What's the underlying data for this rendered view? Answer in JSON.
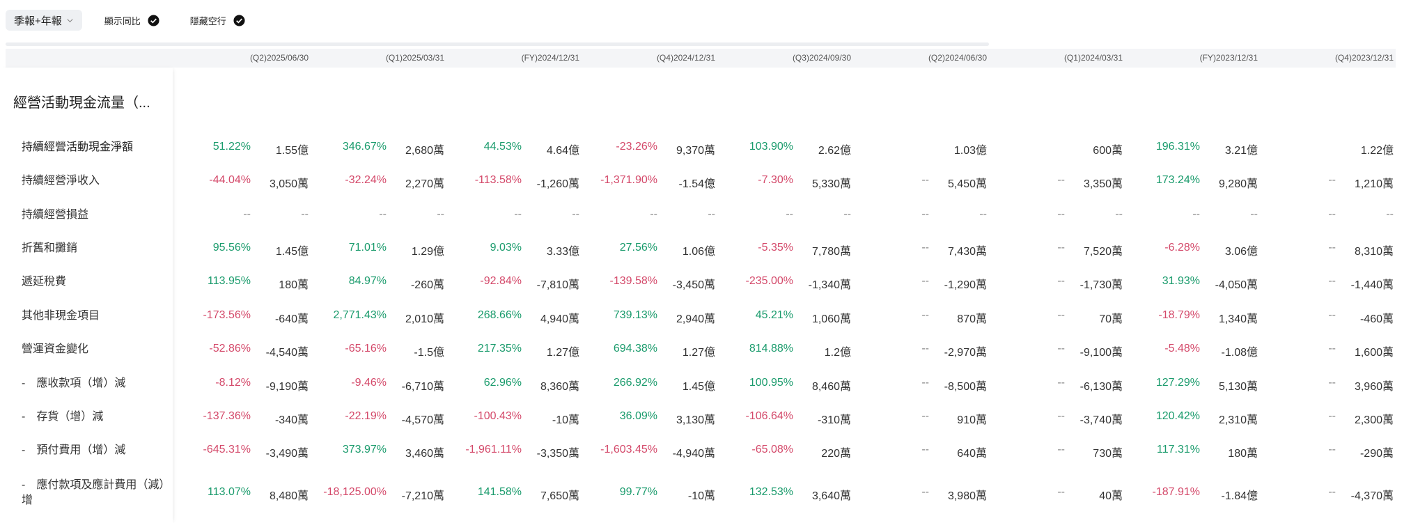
{
  "toolbar": {
    "period_select": "季報+年報",
    "toggle_yoy": "顯示同比",
    "toggle_hide_empty": "隱藏空行"
  },
  "periods": [
    "(Q2)2025/06/30",
    "(Q1)2025/03/31",
    "(FY)2024/12/31",
    "(Q4)2024/12/31",
    "(Q3)2024/09/30",
    "(Q2)2024/06/30",
    "(Q1)2024/03/31",
    "(FY)2023/12/31",
    "(Q4)2023/12/31"
  ],
  "section_title": "經營活動現金流量（...",
  "rows": [
    {
      "label": "持續經營活動現金淨額",
      "bold": true,
      "cells": [
        [
          "51.22%",
          "1.55億"
        ],
        [
          "346.67%",
          "2,680萬"
        ],
        [
          "44.53%",
          "4.64億"
        ],
        [
          "-23.26%",
          "9,370萬"
        ],
        [
          "103.90%",
          "2.62億"
        ],
        [
          "",
          "1.03億"
        ],
        [
          "",
          "600萬"
        ],
        [
          "196.31%",
          "3.21億"
        ],
        [
          "",
          "1.22億"
        ]
      ]
    },
    {
      "label": "持續經營淨收入",
      "cells": [
        [
          "-44.04%",
          "3,050萬"
        ],
        [
          "-32.24%",
          "2,270萬"
        ],
        [
          "-113.58%",
          "-1,260萬"
        ],
        [
          "-1,371.90%",
          "-1.54億"
        ],
        [
          "-7.30%",
          "5,330萬"
        ],
        [
          "--",
          "5,450萬"
        ],
        [
          "--",
          "3,350萬"
        ],
        [
          "173.24%",
          "9,280萬"
        ],
        [
          "--",
          "1,210萬"
        ]
      ]
    },
    {
      "label": "持續經營損益",
      "cells": [
        [
          "--",
          "--"
        ],
        [
          "--",
          "--"
        ],
        [
          "--",
          "--"
        ],
        [
          "--",
          "--"
        ],
        [
          "--",
          "--"
        ],
        [
          "--",
          "--"
        ],
        [
          "--",
          "--"
        ],
        [
          "--",
          "--"
        ],
        [
          "--",
          "--"
        ]
      ]
    },
    {
      "label": "折舊和攤銷",
      "cells": [
        [
          "95.56%",
          "1.45億"
        ],
        [
          "71.01%",
          "1.29億"
        ],
        [
          "9.03%",
          "3.33億"
        ],
        [
          "27.56%",
          "1.06億"
        ],
        [
          "-5.35%",
          "7,780萬"
        ],
        [
          "--",
          "7,430萬"
        ],
        [
          "--",
          "7,520萬"
        ],
        [
          "-6.28%",
          "3.06億"
        ],
        [
          "--",
          "8,310萬"
        ]
      ]
    },
    {
      "label": "遞延稅費",
      "cells": [
        [
          "113.95%",
          "180萬"
        ],
        [
          "84.97%",
          "-260萬"
        ],
        [
          "-92.84%",
          "-7,810萬"
        ],
        [
          "-139.58%",
          "-3,450萬"
        ],
        [
          "-235.00%",
          "-1,340萬"
        ],
        [
          "--",
          "-1,290萬"
        ],
        [
          "--",
          "-1,730萬"
        ],
        [
          "31.93%",
          "-4,050萬"
        ],
        [
          "--",
          "-1,440萬"
        ]
      ]
    },
    {
      "label": "其他非現金項目",
      "cells": [
        [
          "-173.56%",
          "-640萬"
        ],
        [
          "2,771.43%",
          "2,010萬"
        ],
        [
          "268.66%",
          "4,940萬"
        ],
        [
          "739.13%",
          "2,940萬"
        ],
        [
          "45.21%",
          "1,060萬"
        ],
        [
          "--",
          "870萬"
        ],
        [
          "--",
          "70萬"
        ],
        [
          "-18.79%",
          "1,340萬"
        ],
        [
          "--",
          "-460萬"
        ]
      ]
    },
    {
      "label": "營運資金變化",
      "cells": [
        [
          "-52.86%",
          "-4,540萬"
        ],
        [
          "-65.16%",
          "-1.5億"
        ],
        [
          "217.35%",
          "1.27億"
        ],
        [
          "694.38%",
          "1.27億"
        ],
        [
          "814.88%",
          "1.2億"
        ],
        [
          "--",
          "-2,970萬"
        ],
        [
          "--",
          "-9,100萬"
        ],
        [
          "-5.48%",
          "-1.08億"
        ],
        [
          "--",
          "1,600萬"
        ]
      ]
    },
    {
      "label": "-　應收款項（增）減",
      "cells": [
        [
          "-8.12%",
          "-9,190萬"
        ],
        [
          "-9.46%",
          "-6,710萬"
        ],
        [
          "62.96%",
          "8,360萬"
        ],
        [
          "266.92%",
          "1.45億"
        ],
        [
          "100.95%",
          "8,460萬"
        ],
        [
          "--",
          "-8,500萬"
        ],
        [
          "--",
          "-6,130萬"
        ],
        [
          "127.29%",
          "5,130萬"
        ],
        [
          "--",
          "3,960萬"
        ]
      ]
    },
    {
      "label": "-　存貨（增）減",
      "cells": [
        [
          "-137.36%",
          "-340萬"
        ],
        [
          "-22.19%",
          "-4,570萬"
        ],
        [
          "-100.43%",
          "-10萬"
        ],
        [
          "36.09%",
          "3,130萬"
        ],
        [
          "-106.64%",
          "-310萬"
        ],
        [
          "--",
          "910萬"
        ],
        [
          "--",
          "-3,740萬"
        ],
        [
          "120.42%",
          "2,310萬"
        ],
        [
          "--",
          "2,300萬"
        ]
      ]
    },
    {
      "label": "-　預付費用（增）減",
      "cells": [
        [
          "-645.31%",
          "-3,490萬"
        ],
        [
          "373.97%",
          "3,460萬"
        ],
        [
          "-1,961.11%",
          "-3,350萬"
        ],
        [
          "-1,603.45%",
          "-4,940萬"
        ],
        [
          "-65.08%",
          "220萬"
        ],
        [
          "--",
          "640萬"
        ],
        [
          "--",
          "730萬"
        ],
        [
          "117.31%",
          "180萬"
        ],
        [
          "--",
          "-290萬"
        ]
      ]
    },
    {
      "label": "-　應付款項及應計費用（減）增",
      "cells": [
        [
          "113.07%",
          "8,480萬"
        ],
        [
          "-18,125.00%",
          "-7,210萬"
        ],
        [
          "141.58%",
          "7,650萬"
        ],
        [
          "99.77%",
          "-10萬"
        ],
        [
          "132.53%",
          "3,640萬"
        ],
        [
          "--",
          "3,980萬"
        ],
        [
          "--",
          "40萬"
        ],
        [
          "-187.91%",
          "-1.84億"
        ],
        [
          "--",
          "-4,370萬"
        ]
      ]
    }
  ],
  "colors": {
    "positive": "#1a9b6c",
    "negative": "#d4496a",
    "header_bg": "#f4f5f7"
  }
}
